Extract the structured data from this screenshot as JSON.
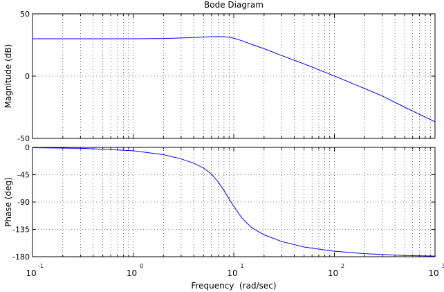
{
  "chart_data": [
    {
      "type": "line",
      "title": "Bode Diagram",
      "xlabel": "",
      "ylabel": "Magnitude (dB)",
      "xscale": "log",
      "xlim": [
        0.1,
        1000
      ],
      "ylim": [
        -50,
        50
      ],
      "yticks": [
        "50",
        "0",
        "-50"
      ],
      "grid": true,
      "series": [
        {
          "color": "#0000ff",
          "x": [
            0.1,
            0.3,
            1,
            2,
            3,
            4,
            5,
            6,
            7,
            8,
            9,
            10,
            12,
            15,
            20,
            30,
            50,
            100,
            200,
            300,
            500,
            1000
          ],
          "y": [
            30,
            30,
            30,
            30.2,
            30.6,
            31,
            31.4,
            31.6,
            31.7,
            31.6,
            31.2,
            30.4,
            28.5,
            25.5,
            22,
            16.5,
            9.8,
            0.1,
            -10,
            -16,
            -25,
            -36.7
          ]
        }
      ]
    },
    {
      "type": "line",
      "title": "",
      "xlabel": "Frequency  (rad/sec)",
      "ylabel": "Phase (deg)",
      "xscale": "log",
      "xlim": [
        0.1,
        1000
      ],
      "ylim": [
        -180,
        0
      ],
      "xticks": [
        {
          "base": "10",
          "exp": "-1"
        },
        {
          "base": "10",
          "exp": "0"
        },
        {
          "base": "10",
          "exp": "1"
        },
        {
          "base": "10",
          "exp": "2"
        },
        {
          "base": "10",
          "exp": "3"
        }
      ],
      "yticks": [
        "0",
        "-45",
        "-90",
        "-135",
        "-180"
      ],
      "grid": true,
      "series": [
        {
          "color": "#0000ff",
          "x": [
            0.1,
            0.3,
            0.5,
            1,
            2,
            3,
            4,
            5,
            6,
            7,
            8,
            9,
            10,
            12,
            15,
            20,
            30,
            50,
            100,
            200,
            500,
            1000
          ],
          "y": [
            -0.5,
            -1.5,
            -3,
            -5.5,
            -12,
            -19,
            -26,
            -34,
            -44,
            -57,
            -71,
            -85,
            -97,
            -116,
            -132,
            -144,
            -155,
            -164,
            -171,
            -175,
            -178,
            -179
          ]
        }
      ]
    }
  ]
}
